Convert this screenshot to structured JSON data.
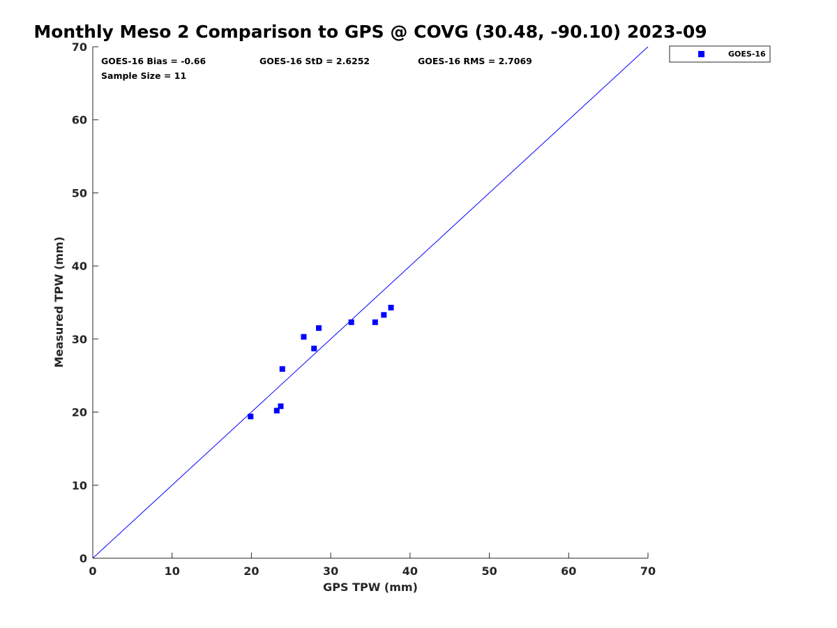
{
  "chart_data": {
    "type": "scatter",
    "title": "Monthly Meso 2 Comparison to GPS @ COVG (30.48, -90.10) 2023-09",
    "xlabel": "GPS TPW (mm)",
    "ylabel": "Measured TPW (mm)",
    "xlim": [
      0,
      70
    ],
    "ylim": [
      0,
      70
    ],
    "xticks": [
      "0",
      "10",
      "20",
      "30",
      "40",
      "50",
      "60",
      "70"
    ],
    "yticks": [
      "0",
      "10",
      "20",
      "30",
      "40",
      "50",
      "60",
      "70"
    ],
    "grid": false,
    "legend_position": "outside-top-right",
    "reference_line": {
      "x": [
        0,
        70
      ],
      "y": [
        0,
        70
      ],
      "color": "#0000ff"
    },
    "stats": {
      "bias": "GOES-16 Bias = -0.66",
      "std": "GOES-16 StD = 2.6252",
      "rms": "GOES-16 RMS = 2.7069",
      "sample_size": "Sample Size = 11"
    },
    "series": [
      {
        "name": "GOES-16",
        "color": "#0000ff",
        "marker": "square",
        "points": [
          {
            "x": 19.9,
            "y": 19.4
          },
          {
            "x": 23.2,
            "y": 20.2
          },
          {
            "x": 23.7,
            "y": 20.8
          },
          {
            "x": 23.9,
            "y": 25.9
          },
          {
            "x": 26.6,
            "y": 30.3
          },
          {
            "x": 27.9,
            "y": 28.7
          },
          {
            "x": 28.5,
            "y": 31.5
          },
          {
            "x": 32.6,
            "y": 32.3
          },
          {
            "x": 35.6,
            "y": 32.3
          },
          {
            "x": 36.7,
            "y": 33.3
          },
          {
            "x": 37.6,
            "y": 34.3
          }
        ]
      }
    ]
  }
}
